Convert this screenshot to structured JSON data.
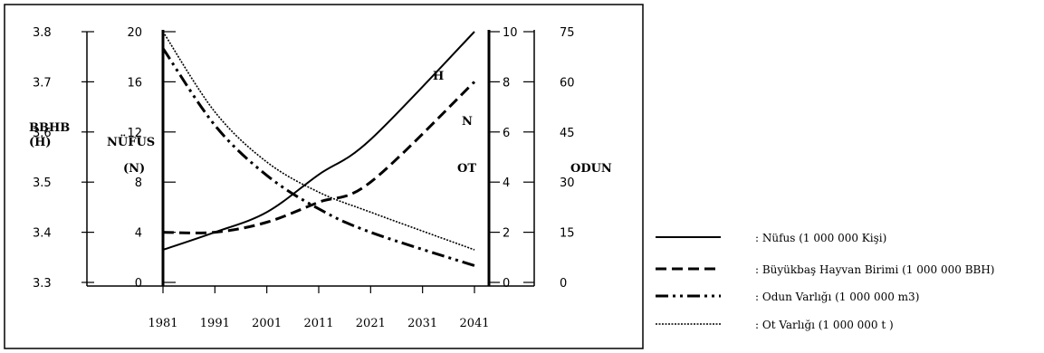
{
  "chart_data": {
    "type": "line",
    "x_ticks": [
      "1981",
      "1991",
      "2001",
      "2011",
      "2021",
      "2031",
      "2041"
    ],
    "axes": {
      "bbhb": {
        "ticks": [
          "3.8",
          "3.7",
          "3.6",
          "3.5",
          "3.4",
          "3.3"
        ],
        "label_line1": "BBHB",
        "label_line2": "(H)"
      },
      "nufus": {
        "ticks": [
          "20",
          "16",
          "12",
          "8",
          "4",
          "0"
        ],
        "label_line1": "NÜFUS",
        "label_line2": "(N)"
      },
      "ot": {
        "ticks": [
          "10",
          "8",
          "6",
          "4",
          "2",
          "0"
        ],
        "label": "OT",
        "marker_n": "N",
        "marker_h": "H"
      },
      "odun": {
        "ticks": [
          "75",
          "60",
          "45",
          "30",
          "15",
          "0"
        ],
        "label": "ODUN"
      }
    },
    "series": [
      {
        "name": ": Nüfus (1 000 000  Kişi)",
        "style": "solid",
        "axis": "nufus",
        "x": [
          1981,
          1991,
          2001,
          2011,
          2021,
          2041
        ],
        "y": [
          2.6,
          4.0,
          5.6,
          8.6,
          11.4,
          20.0
        ]
      },
      {
        "name": ": Büyükbaş  Hayvan Birimi (1 000 000 BBH)",
        "style": "dashed",
        "axis": "bbhb",
        "x": [
          1981,
          1991,
          2001,
          2011,
          2021,
          2041
        ],
        "y": [
          3.4,
          3.4,
          3.42,
          3.46,
          3.5,
          3.7
        ]
      },
      {
        "name": ": Odun  Varlığı (1 000 000 m3)",
        "style": "dashdot",
        "axis": "odun",
        "x": [
          1981,
          1991,
          2001,
          2011,
          2021,
          2041
        ],
        "y": [
          70,
          47,
          32,
          22,
          15,
          5
        ]
      },
      {
        "name": ": Ot Varlığı (1 000 000 t )",
        "style": "dotted",
        "axis": "ot",
        "x": [
          1981,
          1991,
          2001,
          2011,
          2021,
          2041
        ],
        "y": [
          10,
          6.8,
          4.8,
          3.6,
          2.8,
          1.3
        ]
      }
    ],
    "grid": false,
    "legend_position": "right"
  }
}
